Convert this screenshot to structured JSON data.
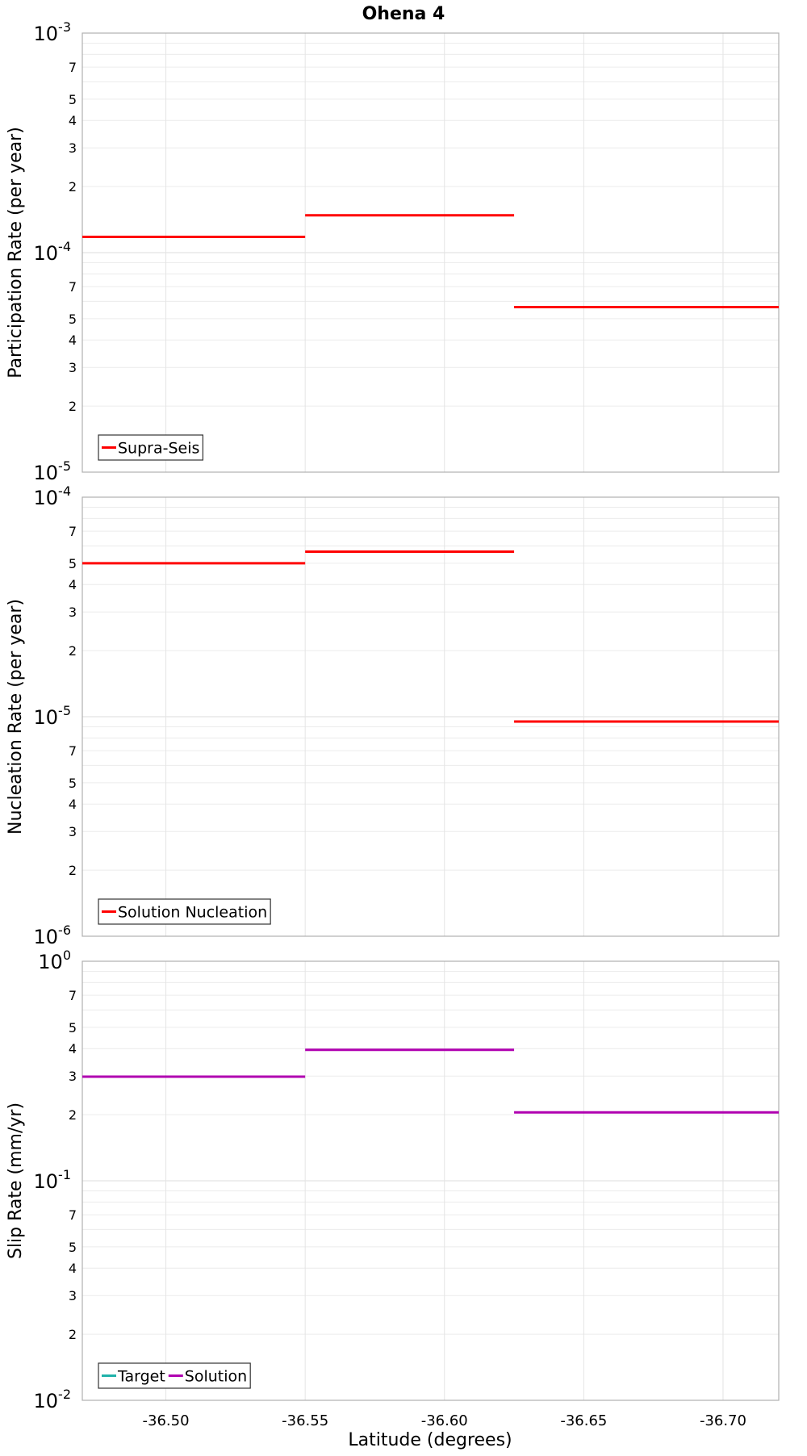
{
  "chart_data": {
    "title": "Ohena 4",
    "xlabel": "Latitude (degrees)",
    "xlim": [
      -36.47,
      -36.72
    ],
    "xticks": [
      -36.5,
      -36.55,
      -36.6,
      -36.65,
      -36.7
    ],
    "xtick_labels": [
      "-36.50",
      "-36.55",
      "-36.60",
      "-36.65",
      "-36.70"
    ],
    "panels": [
      {
        "type": "line",
        "scale": "log",
        "ylabel": "Participation Rate (per year)",
        "ylim_exp": [
          -5,
          -3
        ],
        "major_labels": [
          {
            "base": "10",
            "exp": "-5"
          },
          {
            "base": "10",
            "exp": "-4"
          },
          {
            "base": "10",
            "exp": "-3"
          }
        ],
        "minor_labels": [
          "2",
          "3",
          "4",
          "5",
          "7"
        ],
        "series": [
          {
            "name": "Supra-Seis",
            "color": "#ff0000",
            "shown": true,
            "segments": [
              {
                "x0": -36.47,
                "x1": -36.55,
                "y": 0.000118
              },
              {
                "x0": -36.55,
                "x1": -36.625,
                "y": 0.000148
              },
              {
                "x0": -36.625,
                "x1": -36.72,
                "y": 5.65e-05
              }
            ]
          }
        ],
        "legend_location": "lower-left"
      },
      {
        "type": "line",
        "scale": "log",
        "ylabel": "Nucleation Rate (per year)",
        "ylim_exp": [
          -6,
          -4
        ],
        "major_labels": [
          {
            "base": "10",
            "exp": "-6"
          },
          {
            "base": "10",
            "exp": "-5"
          },
          {
            "base": "10",
            "exp": "-4"
          }
        ],
        "minor_labels": [
          "2",
          "3",
          "4",
          "5",
          "7"
        ],
        "series": [
          {
            "name": "Solution Nucleation",
            "color": "#ff0000",
            "shown": true,
            "segments": [
              {
                "x0": -36.47,
                "x1": -36.55,
                "y": 5e-05
              },
              {
                "x0": -36.55,
                "x1": -36.625,
                "y": 5.65e-05
              },
              {
                "x0": -36.625,
                "x1": -36.72,
                "y": 9.5e-06
              }
            ]
          }
        ],
        "legend_location": "lower-left"
      },
      {
        "type": "line",
        "scale": "log",
        "ylabel": "Slip Rate (mm/yr)",
        "ylim_exp": [
          -2,
          0
        ],
        "major_labels": [
          {
            "base": "10",
            "exp": "-2"
          },
          {
            "base": "10",
            "exp": "-1"
          },
          {
            "base": "10",
            "exp": "0"
          }
        ],
        "minor_labels": [
          "2",
          "3",
          "4",
          "5",
          "7"
        ],
        "series": [
          {
            "name": "Target",
            "color": "#20b2aa",
            "shown": false,
            "segments": []
          },
          {
            "name": "Solution",
            "color": "#b000b0",
            "shown": true,
            "segments": [
              {
                "x0": -36.47,
                "x1": -36.55,
                "y": 0.298
              },
              {
                "x0": -36.55,
                "x1": -36.625,
                "y": 0.395
              },
              {
                "x0": -36.625,
                "x1": -36.72,
                "y": 0.205
              }
            ]
          }
        ],
        "legend_location": "lower-left"
      }
    ]
  }
}
